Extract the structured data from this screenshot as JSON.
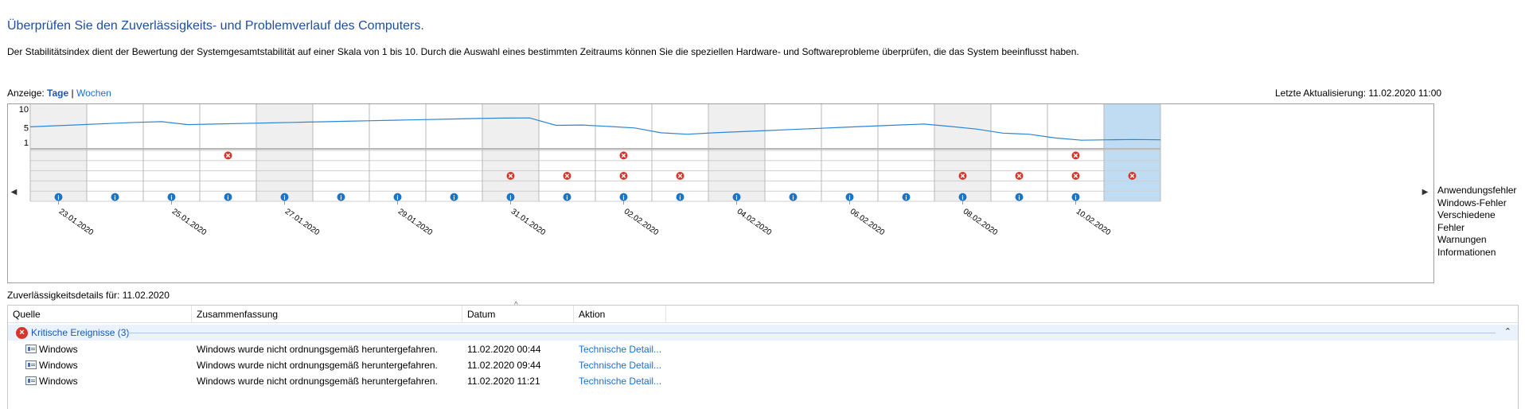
{
  "header": {
    "title": "Überprüfen Sie den Zuverlässigkeits- und Problemverlauf des Computers.",
    "description": "Der Stabilitätsindex dient der Bewertung der Systemgesamtstabilität auf einer Skala von 1 bis 10. Durch die Auswahl eines bestimmten Zeitraums können Sie die speziellen Hardware- und Softwareprobleme überprüfen, die das System beeinflusst haben."
  },
  "view": {
    "label": "Anzeige:",
    "days": "Tage",
    "separator": "|",
    "weeks": "Wochen",
    "last_update": "Letzte Aktualisierung: 11.02.2020 11:00"
  },
  "chart_data": {
    "type": "line",
    "yticks": [
      "10",
      "5",
      "1"
    ],
    "ylim": [
      1,
      10
    ],
    "columns": 20,
    "selected_column": 19,
    "date_labels": [
      "23.01.2020",
      "25.01.2020",
      "27.01.2020",
      "29.01.2020",
      "31.01.2020",
      "02.02.2020",
      "04.02.2020",
      "06.02.2020",
      "08.02.2020",
      "10.02.2020"
    ],
    "series": [
      {
        "values": [
          5.2,
          5.5,
          5.8,
          6.1,
          6.4,
          6.6,
          5.8,
          5.95,
          6.1,
          6.25,
          6.4,
          6.55,
          6.7,
          6.85,
          7.0,
          7.15,
          7.3,
          7.45,
          7.55,
          7.6,
          5.6,
          5.7,
          5.3,
          4.9,
          3.6,
          3.2,
          3.6,
          3.9,
          4.2,
          4.5,
          4.8,
          5.1,
          5.4,
          5.7,
          5.95,
          5.3,
          4.6,
          3.5,
          3.2,
          2.2,
          1.6,
          1.7,
          1.8,
          1.7
        ]
      }
    ],
    "events": {
      "row_labels": [
        "Anwendungsfehler",
        "Windows-Fehler",
        "Verschiedene Fehler",
        "Warnungen",
        "Informationen"
      ],
      "Anwendungsfehler": [
        3,
        10,
        18
      ],
      "Windows-Fehler": [],
      "Verschiedene Fehler": [
        8,
        9,
        10,
        11,
        16,
        17,
        18,
        19
      ],
      "Warnungen": [],
      "Informationen": [
        0,
        1,
        2,
        3,
        4,
        5,
        6,
        7,
        8,
        9,
        10,
        11,
        12,
        13,
        14,
        15,
        16,
        17,
        18
      ]
    }
  },
  "details": {
    "label": "Zuverlässigkeitsdetails für: 11.02.2020",
    "columns": [
      "Quelle",
      "Zusammenfassung",
      "Datum",
      "Aktion"
    ],
    "group": "Kritische Ereignisse (3)",
    "rows": [
      {
        "source": "Windows",
        "summary": "Windows wurde nicht ordnungsgemäß heruntergefahren.",
        "date": "11.02.2020 00:44",
        "action": "Technische Detail..."
      },
      {
        "source": "Windows",
        "summary": "Windows wurde nicht ordnungsgemäß heruntergefahren.",
        "date": "11.02.2020 09:44",
        "action": "Technische Detail..."
      },
      {
        "source": "Windows",
        "summary": "Windows wurde nicht ordnungsgemäß heruntergefahren.",
        "date": "11.02.2020 11:21",
        "action": "Technische Detail..."
      }
    ]
  },
  "colors": {
    "line": "#2a86d8",
    "error": "#d8352a",
    "info": "#1a74c8",
    "shade": "#efefef",
    "selected": "#bfdcf3",
    "grid": "#b8b8b8"
  }
}
